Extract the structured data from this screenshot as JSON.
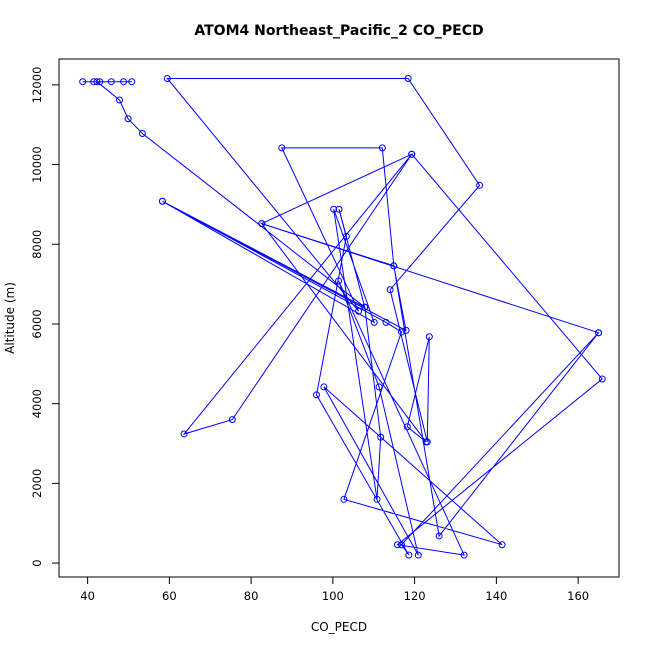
{
  "chart_data": {
    "type": "line",
    "title": "ATOM4 Northeast_Pacific_2 CO_PECD",
    "xlabel": "CO_PECD",
    "ylabel": "Altitude (m)",
    "xlim": [
      33,
      170
    ],
    "ylim": [
      -350,
      12650
    ],
    "xticks": [
      40,
      60,
      80,
      100,
      120,
      140,
      160
    ],
    "yticks": [
      0,
      2000,
      4000,
      6000,
      8000,
      10000,
      12000
    ],
    "series": [
      {
        "color": "#0000ff",
        "marker": "open-circle",
        "points": [
          [
            38.8,
            12080
          ],
          [
            41.5,
            12080
          ],
          [
            43.0,
            12080
          ],
          [
            45.8,
            12080
          ],
          [
            48.8,
            12080
          ],
          [
            50.8,
            12080
          ],
          [
            42.3,
            12080
          ],
          [
            47.8,
            11620
          ],
          [
            49.9,
            11150
          ],
          [
            53.4,
            10780
          ],
          [
            107.8,
            6420
          ],
          [
            58.3,
            9080
          ],
          [
            113.0,
            6040
          ],
          [
            116.8,
            5800
          ],
          [
            102.7,
            1600
          ],
          [
            141.4,
            460
          ],
          [
            97.8,
            4420
          ],
          [
            120.9,
            200
          ],
          [
            111.3,
            4420
          ],
          [
            101.4,
            7080
          ],
          [
            132.1,
            200
          ],
          [
            115.8,
            460
          ],
          [
            165.9,
            4620
          ],
          [
            119.3,
            10260
          ],
          [
            63.6,
            3240
          ],
          [
            75.4,
            3600
          ],
          [
            119.3,
            10260
          ],
          [
            82.6,
            8520
          ],
          [
            114.9,
            7460
          ],
          [
            117.9,
            5840
          ],
          [
            58.3,
            9080
          ],
          [
            110.1,
            6040
          ],
          [
            100.2,
            8880
          ],
          [
            110.8,
            1600
          ],
          [
            111.7,
            3160
          ],
          [
            107.8,
            6420
          ],
          [
            101.5,
            8880
          ],
          [
            103.3,
            8200
          ],
          [
            96.0,
            4220
          ],
          [
            118.6,
            200
          ],
          [
            116.8,
            460
          ],
          [
            165.0,
            5780
          ],
          [
            82.6,
            8520
          ],
          [
            122.8,
            3040
          ],
          [
            118.2,
            3420
          ],
          [
            123.6,
            5680
          ],
          [
            123.1,
            3040
          ],
          [
            114.0,
            6860
          ],
          [
            135.9,
            9480
          ],
          [
            118.4,
            12160
          ],
          [
            59.5,
            12160
          ],
          [
            106.3,
            6320
          ],
          [
            87.5,
            10420
          ],
          [
            112.1,
            10420
          ],
          [
            114.9,
            7460
          ],
          [
            126.0,
            680
          ],
          [
            165.0,
            5780
          ]
        ]
      }
    ]
  }
}
